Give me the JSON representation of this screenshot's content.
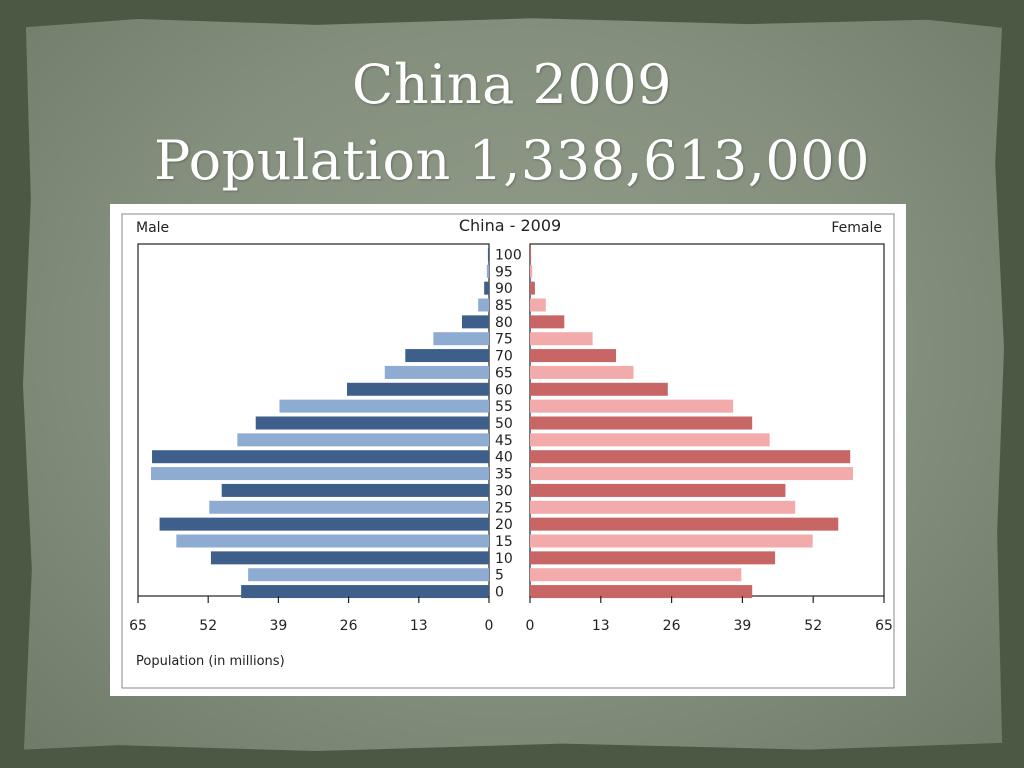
{
  "slide": {
    "title_line1": "China  2009",
    "title_line2": "Population  1,338,613,000"
  },
  "chart_data": {
    "type": "bar",
    "title": "China - 2009",
    "left_label": "Male",
    "right_label": "Female",
    "xlabel": "Population (in millions)",
    "xlim": [
      0,
      65
    ],
    "x_ticks": [
      "0",
      "13",
      "26",
      "39",
      "52",
      "65"
    ],
    "age_labels": [
      "100",
      "95",
      "90",
      "85",
      "80",
      "75",
      "70",
      "65",
      "60",
      "55",
      "50",
      "45",
      "40",
      "35",
      "30",
      "25",
      "20",
      "15",
      "10",
      "5",
      "0"
    ],
    "series": [
      {
        "name": "Male",
        "values": [
          0.2,
          0.4,
          0.9,
          2.0,
          5.0,
          10.3,
          15.5,
          19.3,
          26.3,
          38.8,
          43.2,
          46.6,
          62.4,
          62.6,
          49.5,
          51.8,
          61.0,
          57.9,
          51.5,
          44.6,
          45.9
        ]
      },
      {
        "name": "Female",
        "values": [
          0.2,
          0.4,
          0.9,
          2.9,
          6.3,
          11.5,
          15.8,
          19.0,
          25.3,
          37.3,
          40.8,
          44.0,
          58.8,
          59.3,
          46.9,
          48.7,
          56.6,
          51.9,
          45.0,
          38.8,
          40.8
        ]
      }
    ],
    "colors": {
      "male_dark": "#3e5f8a",
      "male_light": "#8eabd1",
      "female_dark": "#c86666",
      "female_light": "#f2aaaa"
    },
    "grid": false
  }
}
